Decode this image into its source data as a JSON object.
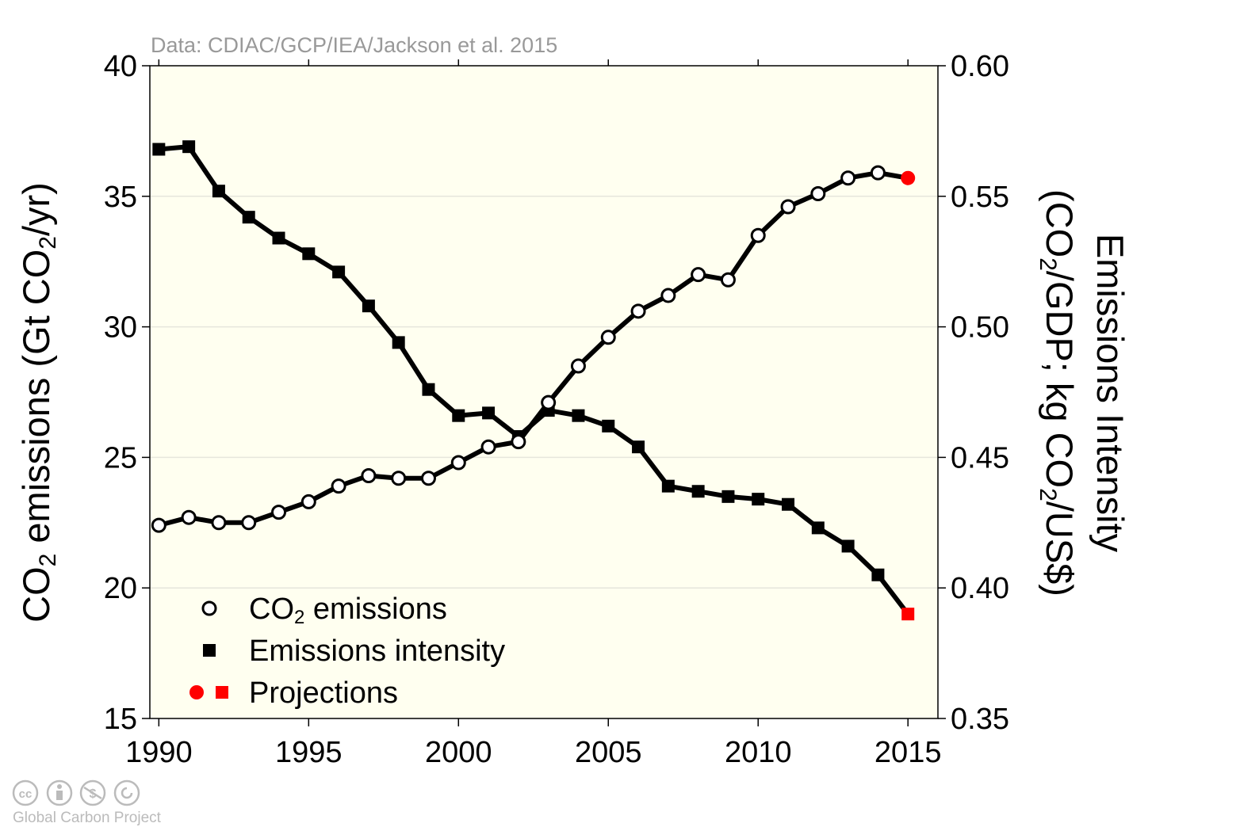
{
  "chart_data": {
    "type": "line",
    "source_note": "Data: CDIAC/GCP/IEA/Jackson et al. 2015",
    "credit": "Global Carbon Project",
    "license_icons": [
      "cc-icon",
      "by-icon",
      "nc-icon",
      "sa-icon"
    ],
    "x": [
      1990,
      1991,
      1992,
      1993,
      1994,
      1995,
      1996,
      1997,
      1998,
      1999,
      2000,
      2001,
      2002,
      2003,
      2004,
      2005,
      2006,
      2007,
      2008,
      2009,
      2010,
      2011,
      2012,
      2013,
      2014,
      2015
    ],
    "xlim": [
      1989.7,
      2016
    ],
    "x_ticks": [
      1990,
      1995,
      2000,
      2005,
      2010,
      2015
    ],
    "x_tick_labels": [
      "1990",
      "1995",
      "2000",
      "2005",
      "2010",
      "2015"
    ],
    "y_left": {
      "label": "CO₂ emissions (Gt CO₂/yr)",
      "label_main": "CO",
      "label_sub": "2",
      "label_mid": " emissions (Gt CO",
      "label_sub2": "2",
      "label_end": "/yr)",
      "lim": [
        15,
        40
      ],
      "ticks": [
        15,
        20,
        25,
        30,
        35,
        40
      ],
      "tick_labels": [
        "15",
        "20",
        "25",
        "30",
        "35",
        "40"
      ]
    },
    "y_right": {
      "label_line1": "Emissions Intensity",
      "label_line2_a": "(CO",
      "label_line2_sub": "2",
      "label_line2_b": "/GDP; kg CO",
      "label_line2_sub2": "2",
      "label_line2_c": "/US$)",
      "lim": [
        0.35,
        0.6
      ],
      "ticks": [
        0.35,
        0.4,
        0.45,
        0.5,
        0.55,
        0.6
      ],
      "tick_labels": [
        "0.35",
        "0.40",
        "0.45",
        "0.50",
        "0.55",
        "0.60"
      ]
    },
    "grid": true,
    "legend_position": "bottom-left",
    "series": [
      {
        "name": "CO₂ emissions",
        "legend_main": "CO",
        "legend_sub": "2",
        "legend_end": " emissions",
        "axis": "left",
        "marker": "open-circle",
        "values": [
          22.4,
          22.7,
          22.5,
          22.5,
          22.9,
          23.3,
          23.9,
          24.3,
          24.2,
          24.2,
          24.8,
          25.4,
          25.6,
          27.1,
          28.5,
          29.6,
          30.6,
          31.2,
          32.0,
          31.8,
          33.5,
          34.6,
          35.1,
          35.7,
          35.9,
          35.7
        ]
      },
      {
        "name": "Emissions intensity",
        "axis": "right",
        "marker": "filled-square",
        "values": [
          0.568,
          0.569,
          0.552,
          0.542,
          0.534,
          0.528,
          0.521,
          0.508,
          0.494,
          0.476,
          0.466,
          0.467,
          0.458,
          0.468,
          0.466,
          0.462,
          0.454,
          0.439,
          0.437,
          0.435,
          0.434,
          0.432,
          0.423,
          0.416,
          0.405,
          0.39
        ]
      }
    ],
    "projections": {
      "name": "Projections",
      "color": "#ff0000",
      "year": 2015
    },
    "colors": {
      "plot_background": "#fffff0",
      "line": "#000000",
      "grid": "#e6e6dc",
      "note_text": "#999999",
      "credit_text": "#bbbbbb"
    }
  }
}
